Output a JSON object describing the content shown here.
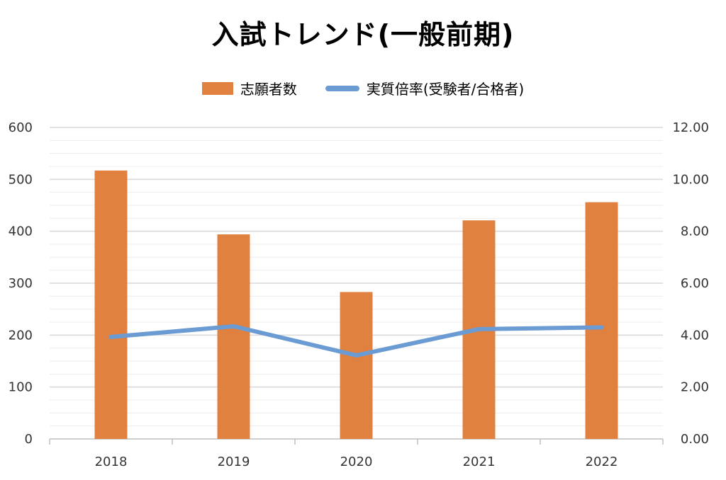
{
  "chart_data": {
    "type": "bar",
    "title": "入試トレンド(一般前期)",
    "categories": [
      "2018",
      "2019",
      "2020",
      "2021",
      "2022"
    ],
    "series": [
      {
        "name": "志願者数",
        "type": "bar",
        "axis": "left",
        "color": "#e0813f",
        "values": [
          517,
          394,
          283,
          421,
          456
        ]
      },
      {
        "name": "実質倍率(受験者/合格者)",
        "type": "line",
        "axis": "right",
        "color": "#6a9bd2",
        "values": [
          3.93,
          4.34,
          3.22,
          4.23,
          4.3
        ]
      }
    ],
    "y_left": {
      "min": 0,
      "max": 600,
      "ticks": [
        "0",
        "100",
        "200",
        "300",
        "400",
        "500",
        "600"
      ]
    },
    "y_right": {
      "min": 0,
      "max": 12,
      "ticks": [
        "0.00",
        "2.00",
        "4.00",
        "6.00",
        "8.00",
        "10.00",
        "12.00"
      ]
    },
    "legend": "top",
    "grid": true
  }
}
